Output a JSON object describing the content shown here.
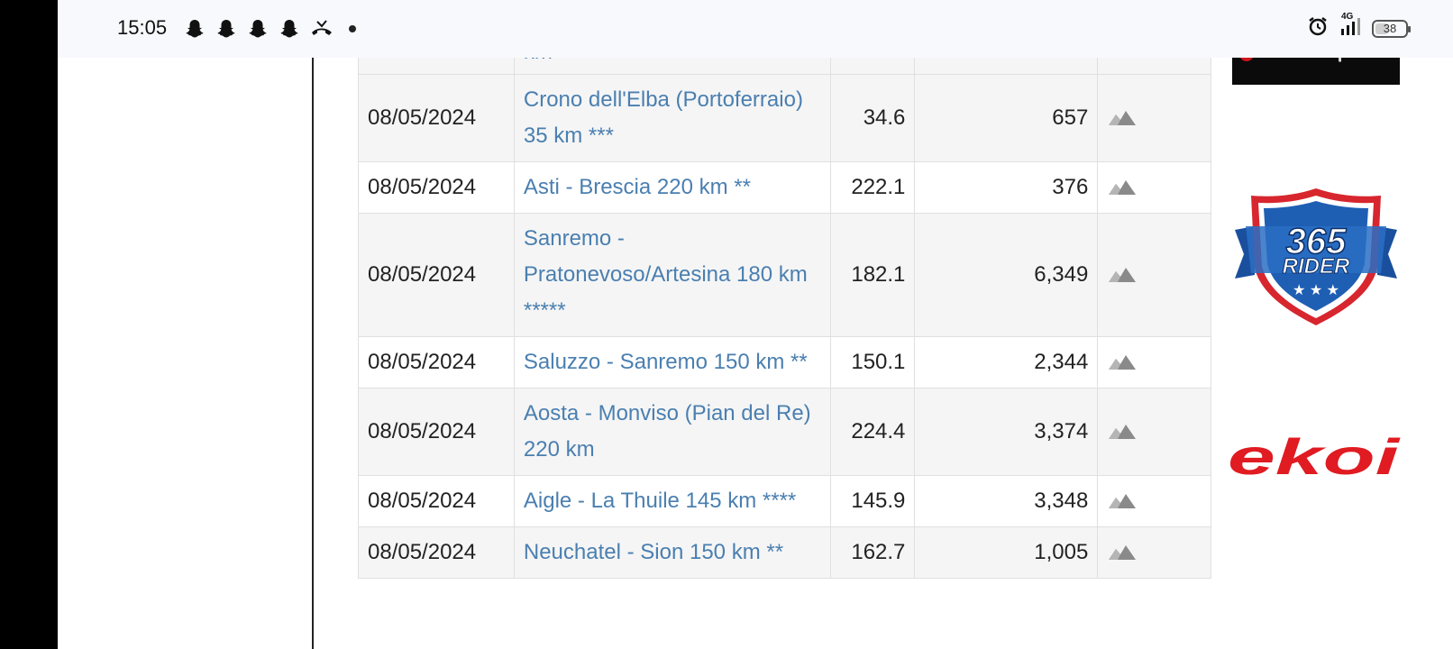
{
  "status_bar": {
    "time": "15:05",
    "notification_icons": [
      "snapchat-icon",
      "snapchat-icon",
      "snapchat-icon",
      "snapchat-icon",
      "missed-call-icon"
    ],
    "network": "4G",
    "battery": "38"
  },
  "table": {
    "rows": [
      {
        "date": "",
        "name": "km",
        "distance": "",
        "elevation": "",
        "shade": "shaded",
        "partial": true
      },
      {
        "date": "08/05/2024",
        "name": "Crono dell'Elba (Portoferraio) 35 km ***",
        "distance": "34.6",
        "elevation": "657",
        "shade": "shaded"
      },
      {
        "date": "08/05/2024",
        "name": "Asti - Brescia 220 km **",
        "distance": "222.1",
        "elevation": "376",
        "shade": "white"
      },
      {
        "date": "08/05/2024",
        "name": "Sanremo - Pratonevoso/Artesina 180 km *****",
        "distance": "182.1",
        "elevation": "6,349",
        "shade": "shaded"
      },
      {
        "date": "08/05/2024",
        "name": "Saluzzo - Sanremo 150 km **",
        "distance": "150.1",
        "elevation": "2,344",
        "shade": "white"
      },
      {
        "date": "08/05/2024",
        "name": "Aosta - Monviso (Pian del Re) 220 km",
        "distance": "224.4",
        "elevation": "3,374",
        "shade": "shaded"
      },
      {
        "date": "08/05/2024",
        "name": "Aigle - La Thuile 145 km ****",
        "distance": "145.9",
        "elevation": "3,348",
        "shade": "white"
      },
      {
        "date": "08/05/2024",
        "name": "Neuchatel - Sion 150 km **",
        "distance": "162.7",
        "elevation": "1,005",
        "shade": "shaded"
      }
    ]
  },
  "sponsors": {
    "forum_sport": "Forum Sport",
    "rider_365_top": "365",
    "rider_365_bottom": "RIDER",
    "ekoi": "ekoi"
  },
  "colors": {
    "link": "#4a7fb0",
    "row_shade": "#f5f5f5",
    "ekoi_red": "#e01b22",
    "rider_blue": "#1f5fb3"
  }
}
